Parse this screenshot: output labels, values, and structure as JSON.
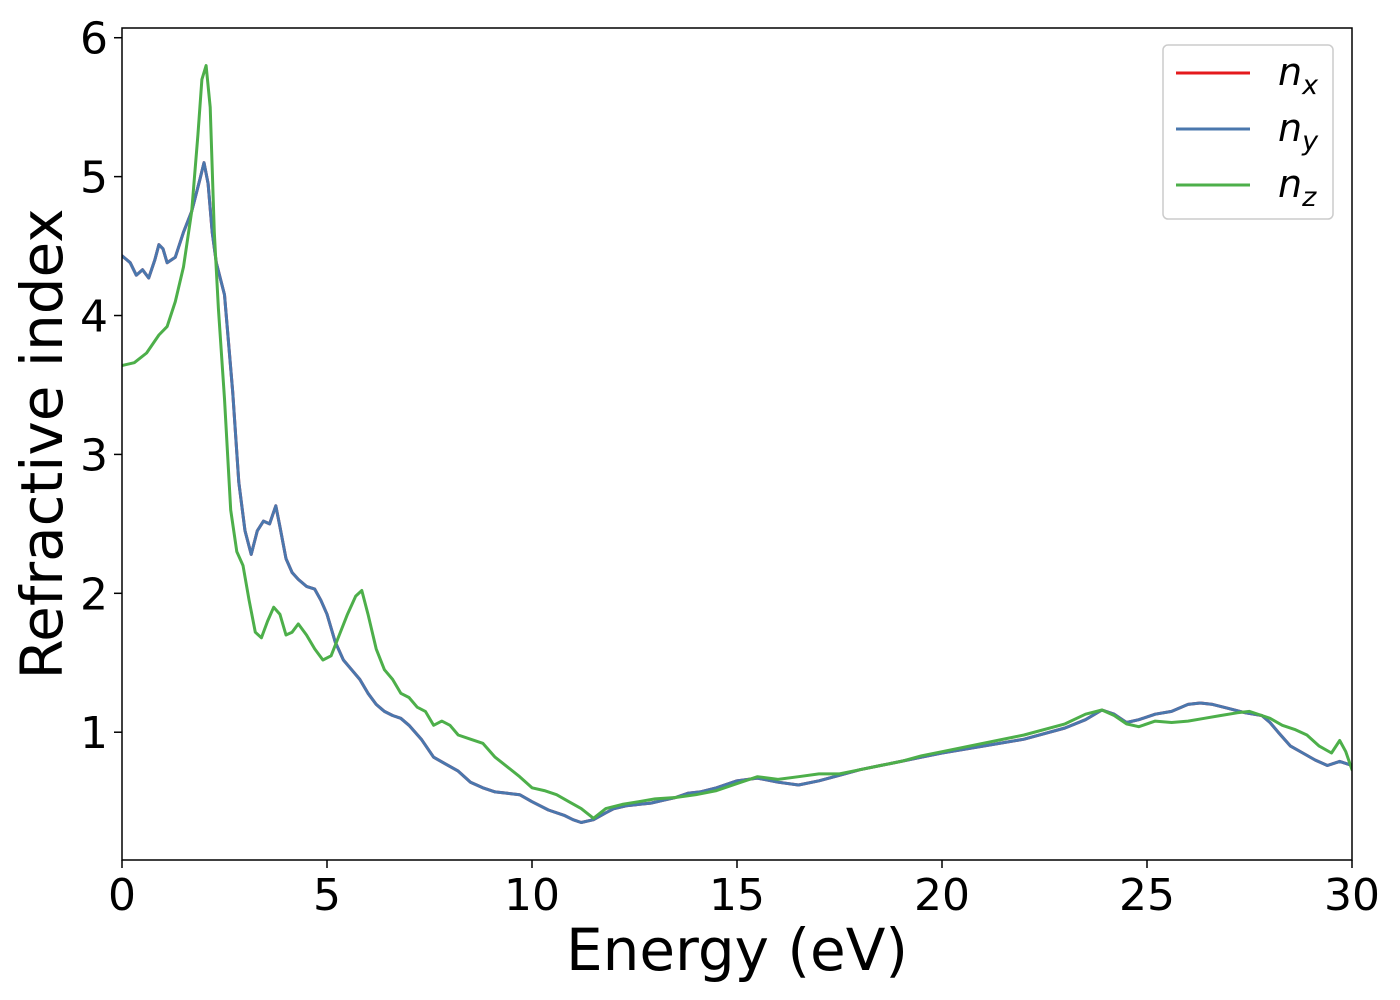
{
  "chart_data": {
    "type": "line",
    "title": "",
    "xlabel": "Energy (eV)",
    "ylabel": "Refractive index",
    "xlim": [
      0,
      30
    ],
    "ylim": [
      0.08,
      6.07
    ],
    "xticks": [
      0,
      5,
      10,
      15,
      20,
      25,
      30
    ],
    "yticks": [
      1,
      2,
      3,
      4,
      5,
      6
    ],
    "xtick_labels": [
      "0",
      "5",
      "10",
      "15",
      "20",
      "25",
      "30"
    ],
    "ytick_labels": [
      "1",
      "2",
      "3",
      "4",
      "5",
      "6"
    ],
    "grid": false,
    "legend_position": "top-right",
    "series": [
      {
        "name": "n_x",
        "label_main": "n",
        "label_sub": "x",
        "color": "#e41a1c",
        "x": [
          0,
          0.2,
          0.35,
          0.5,
          0.65,
          0.8,
          0.9,
          1.0,
          1.1,
          1.3,
          1.5,
          1.7,
          1.9,
          2.0,
          2.1,
          2.2,
          2.3,
          2.5,
          2.7,
          2.85,
          3.0,
          3.15,
          3.3,
          3.45,
          3.6,
          3.75,
          3.85,
          4.0,
          4.15,
          4.3,
          4.5,
          4.7,
          4.85,
          5.0,
          5.2,
          5.4,
          5.6,
          5.8,
          6.0,
          6.2,
          6.4,
          6.6,
          6.8,
          7.0,
          7.3,
          7.6,
          7.9,
          8.2,
          8.5,
          8.8,
          9.1,
          9.4,
          9.7,
          10.0,
          10.4,
          10.8,
          11.0,
          11.2,
          11.5,
          11.8,
          12.0,
          12.3,
          12.6,
          12.9,
          13.2,
          13.5,
          13.8,
          14.1,
          14.5,
          15.0,
          15.5,
          16.0,
          16.5,
          17.0,
          17.5,
          18.0,
          18.5,
          19.0,
          19.5,
          20.0,
          21.0,
          22.0,
          23.0,
          23.5,
          23.9,
          24.2,
          24.5,
          24.8,
          25.2,
          25.6,
          26.0,
          26.3,
          26.6,
          27.0,
          27.4,
          27.8,
          28.0,
          28.2,
          28.5,
          28.8,
          29.1,
          29.4,
          29.7,
          30.0
        ],
        "y": [
          4.43,
          4.38,
          4.29,
          4.33,
          4.27,
          4.4,
          4.51,
          4.48,
          4.38,
          4.42,
          4.6,
          4.75,
          4.98,
          5.1,
          4.95,
          4.6,
          4.38,
          4.15,
          3.45,
          2.8,
          2.45,
          2.28,
          2.45,
          2.52,
          2.5,
          2.63,
          2.48,
          2.25,
          2.15,
          2.1,
          2.05,
          2.03,
          1.95,
          1.85,
          1.65,
          1.52,
          1.45,
          1.38,
          1.28,
          1.2,
          1.15,
          1.12,
          1.1,
          1.05,
          0.95,
          0.82,
          0.77,
          0.72,
          0.64,
          0.6,
          0.57,
          0.56,
          0.55,
          0.5,
          0.44,
          0.4,
          0.37,
          0.35,
          0.37,
          0.42,
          0.45,
          0.47,
          0.48,
          0.49,
          0.51,
          0.53,
          0.56,
          0.57,
          0.6,
          0.65,
          0.67,
          0.64,
          0.62,
          0.65,
          0.69,
          0.73,
          0.76,
          0.79,
          0.82,
          0.85,
          0.9,
          0.95,
          1.03,
          1.09,
          1.16,
          1.13,
          1.07,
          1.09,
          1.13,
          1.15,
          1.2,
          1.21,
          1.2,
          1.17,
          1.14,
          1.12,
          1.07,
          1.0,
          0.9,
          0.85,
          0.8,
          0.76,
          0.79,
          0.76
        ]
      },
      {
        "name": "n_y",
        "label_main": "n",
        "label_sub": "y",
        "color": "#4a77ad",
        "x": [
          0,
          0.2,
          0.35,
          0.5,
          0.65,
          0.8,
          0.9,
          1.0,
          1.1,
          1.3,
          1.5,
          1.7,
          1.9,
          2.0,
          2.1,
          2.2,
          2.3,
          2.5,
          2.7,
          2.85,
          3.0,
          3.15,
          3.3,
          3.45,
          3.6,
          3.75,
          3.85,
          4.0,
          4.15,
          4.3,
          4.5,
          4.7,
          4.85,
          5.0,
          5.2,
          5.4,
          5.6,
          5.8,
          6.0,
          6.2,
          6.4,
          6.6,
          6.8,
          7.0,
          7.3,
          7.6,
          7.9,
          8.2,
          8.5,
          8.8,
          9.1,
          9.4,
          9.7,
          10.0,
          10.4,
          10.8,
          11.0,
          11.2,
          11.5,
          11.8,
          12.0,
          12.3,
          12.6,
          12.9,
          13.2,
          13.5,
          13.8,
          14.1,
          14.5,
          15.0,
          15.5,
          16.0,
          16.5,
          17.0,
          17.5,
          18.0,
          18.5,
          19.0,
          19.5,
          20.0,
          21.0,
          22.0,
          23.0,
          23.5,
          23.9,
          24.2,
          24.5,
          24.8,
          25.2,
          25.6,
          26.0,
          26.3,
          26.6,
          27.0,
          27.4,
          27.8,
          28.0,
          28.2,
          28.5,
          28.8,
          29.1,
          29.4,
          29.7,
          30.0
        ],
        "y": [
          4.43,
          4.38,
          4.29,
          4.33,
          4.27,
          4.4,
          4.51,
          4.48,
          4.38,
          4.42,
          4.6,
          4.75,
          4.98,
          5.1,
          4.95,
          4.6,
          4.38,
          4.15,
          3.45,
          2.8,
          2.45,
          2.28,
          2.45,
          2.52,
          2.5,
          2.63,
          2.48,
          2.25,
          2.15,
          2.1,
          2.05,
          2.03,
          1.95,
          1.85,
          1.65,
          1.52,
          1.45,
          1.38,
          1.28,
          1.2,
          1.15,
          1.12,
          1.1,
          1.05,
          0.95,
          0.82,
          0.77,
          0.72,
          0.64,
          0.6,
          0.57,
          0.56,
          0.55,
          0.5,
          0.44,
          0.4,
          0.37,
          0.35,
          0.37,
          0.42,
          0.45,
          0.47,
          0.48,
          0.49,
          0.51,
          0.53,
          0.56,
          0.57,
          0.6,
          0.65,
          0.67,
          0.64,
          0.62,
          0.65,
          0.69,
          0.73,
          0.76,
          0.79,
          0.82,
          0.85,
          0.9,
          0.95,
          1.03,
          1.09,
          1.16,
          1.13,
          1.07,
          1.09,
          1.13,
          1.15,
          1.2,
          1.21,
          1.2,
          1.17,
          1.14,
          1.12,
          1.07,
          1.0,
          0.9,
          0.85,
          0.8,
          0.76,
          0.79,
          0.76
        ]
      },
      {
        "name": "n_z",
        "label_main": "n",
        "label_sub": "z",
        "color": "#4daf4a",
        "x": [
          0,
          0.3,
          0.6,
          0.9,
          1.1,
          1.3,
          1.5,
          1.7,
          1.85,
          1.95,
          2.05,
          2.15,
          2.25,
          2.35,
          2.5,
          2.65,
          2.8,
          2.95,
          3.1,
          3.25,
          3.4,
          3.55,
          3.7,
          3.85,
          4.0,
          4.15,
          4.3,
          4.5,
          4.7,
          4.9,
          5.1,
          5.3,
          5.5,
          5.7,
          5.85,
          6.0,
          6.2,
          6.4,
          6.6,
          6.8,
          7.0,
          7.2,
          7.4,
          7.6,
          7.8,
          8.0,
          8.2,
          8.5,
          8.8,
          9.1,
          9.4,
          9.7,
          10.0,
          10.3,
          10.6,
          10.9,
          11.2,
          11.5,
          11.8,
          12.2,
          12.6,
          13.0,
          13.5,
          14.0,
          14.5,
          15.0,
          15.5,
          16.0,
          16.5,
          17.0,
          17.5,
          18.0,
          18.5,
          19.0,
          19.5,
          20.0,
          21.0,
          22.0,
          23.0,
          23.5,
          23.9,
          24.2,
          24.5,
          24.8,
          25.2,
          25.6,
          26.0,
          26.4,
          26.8,
          27.2,
          27.5,
          27.8,
          28.0,
          28.3,
          28.6,
          28.9,
          29.2,
          29.5,
          29.7,
          29.85,
          30.0
        ],
        "y": [
          3.64,
          3.66,
          3.73,
          3.86,
          3.92,
          4.1,
          4.35,
          4.75,
          5.3,
          5.7,
          5.8,
          5.5,
          4.6,
          4.05,
          3.4,
          2.6,
          2.3,
          2.2,
          1.95,
          1.72,
          1.68,
          1.8,
          1.9,
          1.85,
          1.7,
          1.72,
          1.78,
          1.7,
          1.6,
          1.52,
          1.55,
          1.7,
          1.85,
          1.98,
          2.02,
          1.85,
          1.6,
          1.45,
          1.38,
          1.28,
          1.25,
          1.18,
          1.15,
          1.05,
          1.08,
          1.05,
          0.98,
          0.95,
          0.92,
          0.82,
          0.75,
          0.68,
          0.6,
          0.58,
          0.55,
          0.5,
          0.45,
          0.38,
          0.45,
          0.48,
          0.5,
          0.52,
          0.53,
          0.55,
          0.58,
          0.63,
          0.68,
          0.66,
          0.68,
          0.7,
          0.7,
          0.73,
          0.76,
          0.79,
          0.83,
          0.86,
          0.92,
          0.98,
          1.06,
          1.13,
          1.16,
          1.12,
          1.06,
          1.04,
          1.08,
          1.07,
          1.08,
          1.1,
          1.12,
          1.14,
          1.15,
          1.12,
          1.1,
          1.05,
          1.02,
          0.98,
          0.9,
          0.85,
          0.94,
          0.86,
          0.73
        ]
      }
    ]
  }
}
